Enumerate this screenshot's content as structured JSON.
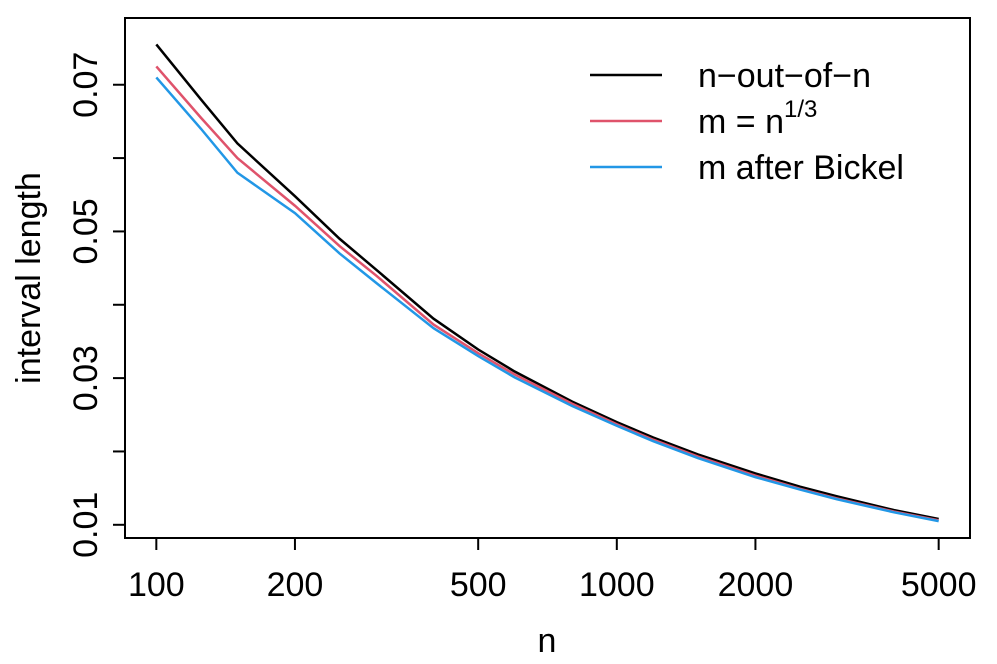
{
  "chart_data": {
    "type": "line",
    "x_label": "n",
    "y_label": "interval length",
    "x_log": true,
    "x": [
      100,
      125,
      150,
      200,
      250,
      300,
      400,
      500,
      600,
      800,
      1000,
      1200,
      1500,
      2000,
      2500,
      3000,
      4000,
      5000
    ],
    "series": [
      {
        "name": "n−out−of−n",
        "color": "#000000",
        "values": [
          0.0755,
          0.068,
          0.062,
          0.0548,
          0.049,
          0.0448,
          0.0381,
          0.0339,
          0.0309,
          0.0268,
          0.024,
          0.0219,
          0.0196,
          0.017,
          0.0152,
          0.0139,
          0.012,
          0.0108
        ]
      },
      {
        "name": "m = n",
        "name_superscript": "1/3",
        "color": "#df536b",
        "values": [
          0.0725,
          0.0655,
          0.06,
          0.0535,
          0.048,
          0.044,
          0.0373,
          0.0334,
          0.0305,
          0.0265,
          0.0237,
          0.0216,
          0.0193,
          0.0167,
          0.0149,
          0.0136,
          0.0118,
          0.0106
        ]
      },
      {
        "name": "m after Bickel",
        "color": "#2297e6",
        "values": [
          0.071,
          0.064,
          0.058,
          0.0525,
          0.047,
          0.043,
          0.0368,
          0.033,
          0.0301,
          0.0262,
          0.0235,
          0.0214,
          0.0191,
          0.0165,
          0.0148,
          0.0135,
          0.0117,
          0.0105
        ]
      }
    ],
    "xlim": [
      85.5,
      5848
    ],
    "xticks": [
      100,
      200,
      500,
      1000,
      2000,
      5000
    ],
    "ylim": [
      0.0082,
      0.0791
    ],
    "yticks": [
      0.01,
      0.03,
      0.05,
      0.07
    ],
    "yticks_minor": [
      0.02,
      0.04,
      0.06
    ],
    "legend": "top-right"
  }
}
